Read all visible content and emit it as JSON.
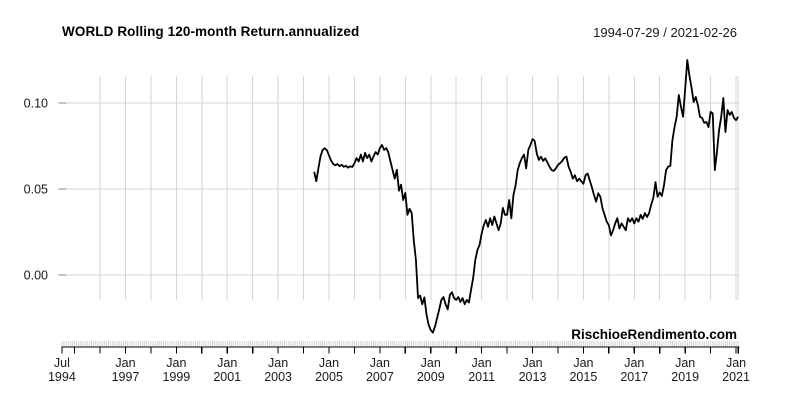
{
  "chart_data": {
    "type": "line",
    "title": "WORLD Rolling 120-month Return.annualized",
    "date_range": "1994-07-29 / 2021-02-26",
    "watermark": "RischioeRendimento.com",
    "line_color": "#000000",
    "grid_color": "#d6d6d6",
    "axis_color": "#000000",
    "label_color": "#1a1a1a",
    "ylim": [
      -0.04,
      0.127
    ],
    "grid": true,
    "y_ticks": [
      {
        "label": "0.00",
        "value": 0.0
      },
      {
        "label": "0.05",
        "value": 0.05
      },
      {
        "label": "0.10",
        "value": 0.1
      }
    ],
    "x_axis": {
      "start": "1994-07",
      "end": "2021-02",
      "minor_tick_interval": "month",
      "major_tick_interval": "year",
      "labels": [
        {
          "month": "Jul",
          "year": "1994"
        },
        {
          "month": "Jan",
          "year": "1997"
        },
        {
          "month": "Jan",
          "year": "1999"
        },
        {
          "month": "Jan",
          "year": "2001"
        },
        {
          "month": "Jan",
          "year": "2003"
        },
        {
          "month": "Jan",
          "year": "2005"
        },
        {
          "month": "Jan",
          "year": "2007"
        },
        {
          "month": "Jan",
          "year": "2009"
        },
        {
          "month": "Jan",
          "year": "2011"
        },
        {
          "month": "Jan",
          "year": "2013"
        },
        {
          "month": "Jan",
          "year": "2015"
        },
        {
          "month": "Jan",
          "year": "2017"
        },
        {
          "month": "Jan",
          "year": "2019"
        },
        {
          "month": "Jan",
          "year": "2021"
        }
      ]
    },
    "series": {
      "name": "WORLD rolling 120-month annualized return",
      "frequency": "monthly",
      "start": "2004-06",
      "end": "2021-02",
      "values": [
        0.06,
        0.0545,
        0.062,
        0.069,
        0.0727,
        0.0737,
        0.0725,
        0.0695,
        0.0665,
        0.0645,
        0.0638,
        0.0645,
        0.0632,
        0.0641,
        0.0629,
        0.0635,
        0.0624,
        0.0632,
        0.0628,
        0.065,
        0.068,
        0.066,
        0.07,
        0.066,
        0.071,
        0.068,
        0.07,
        0.066,
        0.069,
        0.0715,
        0.07,
        0.0738,
        0.0756,
        0.0727,
        0.0738,
        0.0712,
        0.066,
        0.061,
        0.056,
        0.0612,
        0.049,
        0.0525,
        0.0436,
        0.0477,
        0.035,
        0.0385,
        0.036,
        0.02,
        0.0087,
        -0.0134,
        -0.012,
        -0.017,
        -0.013,
        -0.023,
        -0.029,
        -0.032,
        -0.0335,
        -0.03,
        -0.025,
        -0.02,
        -0.0145,
        -0.0128,
        -0.017,
        -0.02,
        -0.0116,
        -0.01,
        -0.0134,
        -0.0145,
        -0.0128,
        -0.0157,
        -0.0134,
        -0.017,
        -0.0145,
        -0.016,
        -0.0087,
        -0.0017,
        0.0087,
        0.0145,
        0.0174,
        0.024,
        0.029,
        0.032,
        0.028,
        0.033,
        0.029,
        0.034,
        0.03,
        0.026,
        0.03,
        0.039,
        0.035,
        0.035,
        0.0436,
        0.033,
        0.0465,
        0.052,
        0.061,
        0.065,
        0.068,
        0.07,
        0.062,
        0.0727,
        0.0756,
        0.079,
        0.078,
        0.0707,
        0.0669,
        0.0688,
        0.0663,
        0.0678,
        0.0655,
        0.063,
        0.061,
        0.0605,
        0.062,
        0.064,
        0.065,
        0.0663,
        0.0682,
        0.0688,
        0.063,
        0.06,
        0.056,
        0.058,
        0.0545,
        0.056,
        0.0545,
        0.053,
        0.058,
        0.059,
        0.055,
        0.051,
        0.0465,
        0.0426,
        0.0475,
        0.0455,
        0.0388,
        0.035,
        0.031,
        0.029,
        0.023,
        0.026,
        0.03,
        0.033,
        0.027,
        0.03,
        0.028,
        0.026,
        0.033,
        0.031,
        0.033,
        0.03,
        0.033,
        0.031,
        0.035,
        0.0326,
        0.036,
        0.0337,
        0.036,
        0.041,
        0.045,
        0.054,
        0.0455,
        0.048,
        0.046,
        0.052,
        0.061,
        0.063,
        0.0634,
        0.0785,
        0.086,
        0.092,
        0.1047,
        0.098,
        0.092,
        0.108,
        0.125,
        0.116,
        0.109,
        0.1006,
        0.1035,
        0.0988,
        0.0919,
        0.0913,
        0.0884,
        0.089,
        0.086,
        0.0948,
        0.094,
        0.061,
        0.0715,
        0.0843,
        0.0919,
        0.1029,
        0.0831,
        0.0959,
        0.093,
        0.0948,
        0.0913,
        0.09,
        0.092
      ]
    }
  }
}
